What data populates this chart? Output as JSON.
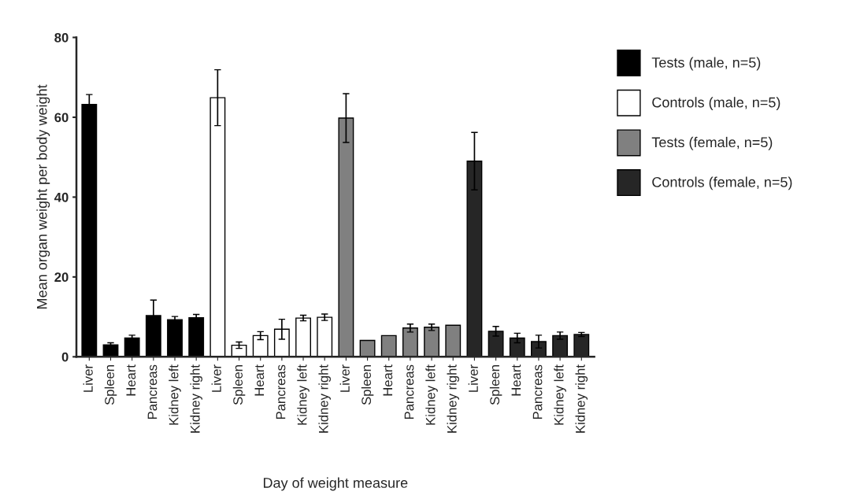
{
  "chart_data": {
    "type": "bar",
    "xlabel": "Day of weight measure",
    "ylabel": "Mean organ weight per body weight",
    "categories": [
      "Liver",
      "Spleen",
      "Heart",
      "Pancreas",
      "Kidney left",
      "Kidney right",
      "Liver",
      "Spleen",
      "Heart",
      "Pancreas",
      "Kidney left",
      "Kidney right",
      "Liver",
      "Spleen",
      "Heart",
      "Pancreas",
      "Kidney left",
      "Kidney right",
      "Liver",
      "Spleen",
      "Heart",
      "Pancreas",
      "Kidney left",
      "Kidney right"
    ],
    "series": [
      {
        "name": "Tests (male, n=5)",
        "color": "#000000",
        "values": [
          63.2,
          3.0,
          4.7,
          10.3,
          9.3,
          9.8,
          null,
          null,
          null,
          null,
          null,
          null,
          null,
          null,
          null,
          null,
          null,
          null,
          null,
          null,
          null,
          null,
          null,
          null
        ],
        "errors": [
          2.5,
          0.5,
          0.7,
          3.9,
          0.8,
          0.8,
          null,
          null,
          null,
          null,
          null,
          null,
          null,
          null,
          null,
          null,
          null,
          null,
          null,
          null,
          null,
          null,
          null,
          null
        ]
      },
      {
        "name": "Controls (male, n=5)",
        "color": "#ffffff",
        "values": [
          null,
          null,
          null,
          null,
          null,
          null,
          64.9,
          2.9,
          5.3,
          6.9,
          9.7,
          9.9,
          null,
          null,
          null,
          null,
          null,
          null,
          null,
          null,
          null,
          null,
          null,
          null
        ],
        "errors": [
          null,
          null,
          null,
          null,
          null,
          null,
          7.0,
          0.8,
          1.0,
          2.5,
          0.7,
          0.8,
          null,
          null,
          null,
          null,
          null,
          null,
          null,
          null,
          null,
          null,
          null,
          null
        ]
      },
      {
        "name": "Tests (female, n=5)",
        "color": "#808080",
        "values": [
          null,
          null,
          null,
          null,
          null,
          null,
          null,
          null,
          null,
          null,
          null,
          null,
          59.8,
          4.1,
          5.3,
          7.2,
          7.4,
          7.9,
          null,
          null,
          null,
          null,
          null,
          null
        ],
        "errors": [
          null,
          null,
          null,
          null,
          null,
          null,
          null,
          null,
          null,
          null,
          null,
          null,
          6.1,
          null,
          null,
          1.0,
          0.8,
          null,
          null,
          null,
          null,
          null,
          null,
          null
        ]
      },
      {
        "name": "Controls (female, n=5)",
        "color": "#262626",
        "values": [
          null,
          null,
          null,
          null,
          null,
          null,
          null,
          null,
          null,
          null,
          null,
          null,
          null,
          null,
          null,
          null,
          null,
          null,
          49.0,
          6.4,
          4.7,
          3.8,
          5.3,
          5.6
        ],
        "errors": [
          null,
          null,
          null,
          null,
          null,
          null,
          null,
          null,
          null,
          null,
          null,
          null,
          null,
          null,
          null,
          null,
          null,
          null,
          7.2,
          1.2,
          1.2,
          1.6,
          0.9,
          0.5
        ]
      }
    ],
    "ylim": [
      0,
      80
    ],
    "yticks": [
      0,
      20,
      40,
      60,
      80
    ],
    "grid": false,
    "legend": "top right"
  }
}
